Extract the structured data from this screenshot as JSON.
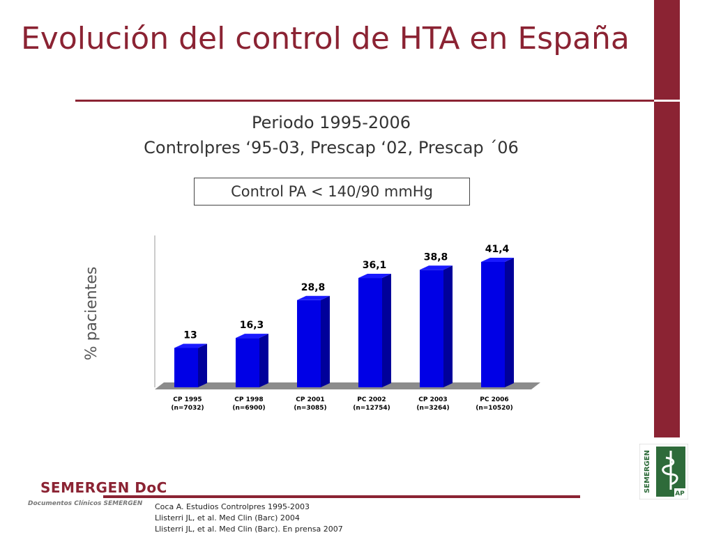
{
  "slide": {
    "title": "Evolución del control de HTA en España",
    "subtitle_line1": "Periodo 1995-2006",
    "subtitle_line2": "Controlpres ‘95-03, Prescap ‘02, Prescap ´06",
    "box_label": "Control PA < 140/90 mmHg"
  },
  "footer": {
    "brand": "SEMERGEN DoC",
    "brand_sub": "Documentos Clínicos SEMERGEN",
    "references": [
      "Coca A. Estudios Controlpres 1995-2003",
      "Llisterri JL, et al.  Med Clin (Barc) 2004",
      "Llisterri JL, et al. Med Clin (Barc). En prensa 2007"
    ],
    "logo_text": "SEMERGEN",
    "logo_badge": "AP"
  },
  "colors": {
    "accent": "#8b2333",
    "bar_front": "#0000e6",
    "bar_side": "#00009a",
    "bar_top": "#1a1aff",
    "floor": "#8c8c8c"
  },
  "chart_data": {
    "type": "bar",
    "categories": [
      "CP 1995",
      "CP 1998",
      "CP 2001",
      "PC 2002",
      "CP 2003",
      "PC 2006"
    ],
    "sample_sizes": [
      "(n=7032)",
      "(n=6900)",
      "(n=3085)",
      "(n=12754)",
      "(n=3264)",
      "(n=10520)"
    ],
    "values": [
      13,
      16.3,
      28.8,
      36.1,
      38.8,
      41.4
    ],
    "value_labels": [
      "13",
      "16,3",
      "28,8",
      "36,1",
      "38,8",
      "41,4"
    ],
    "ylabel": "% pacientes",
    "ylim": [
      0,
      45
    ],
    "grid": false,
    "style": "3d"
  }
}
